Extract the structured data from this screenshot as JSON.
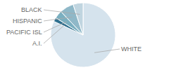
{
  "chart_data": {
    "type": "pie",
    "categories": [
      "WHITE",
      "A.I.",
      "PACIFIC ISL",
      "HISPANIC",
      "BLACK"
    ],
    "values": [
      82,
      2,
      4,
      7,
      5
    ],
    "colors": [
      "#d5e3ed",
      "#2e6f8e",
      "#7aafc0",
      "#8fb8c8",
      "#c0d5e0"
    ]
  }
}
